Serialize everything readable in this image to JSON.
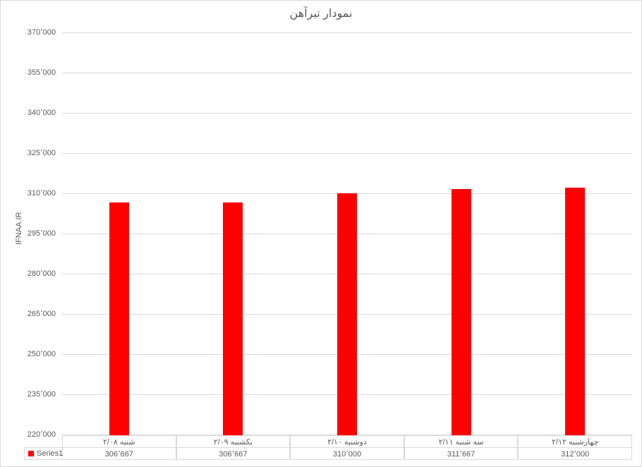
{
  "chart_data": {
    "type": "bar",
    "title": "نمودار تیرآهن",
    "ylabel": "IFNAA.IR",
    "categories": [
      "شنبه ۲/۰۸",
      "یکشنبه ۲/۰۹",
      "دوشنبه ۲/۱۰",
      "سه شنبه ۲/۱۱",
      "چهارشنبه ۲/۱۲"
    ],
    "series": [
      {
        "name": "Series1",
        "color": "#FF0000",
        "values": [
          306667,
          306667,
          310000,
          311667,
          312000
        ],
        "value_labels": [
          "306٬667",
          "306٬667",
          "310٬000",
          "311٬667",
          "312٬000"
        ]
      }
    ],
    "ylim": [
      220000,
      370000
    ],
    "ytick_step": 15000,
    "ytick_labels": [
      "370٬000",
      "355٬000",
      "340٬000",
      "325٬000",
      "310٬000",
      "295٬000",
      "280٬000",
      "265٬000",
      "250٬000",
      "235٬000",
      "220٬000"
    ],
    "grid": true,
    "legend_position": "bottom-left",
    "data_table_shown": true
  },
  "colors": {
    "bar": "#FF0000",
    "gridline": "#D9D9D9",
    "table_border": "#D9D9D9",
    "text": "#595959",
    "background": "#FFFFFF"
  }
}
